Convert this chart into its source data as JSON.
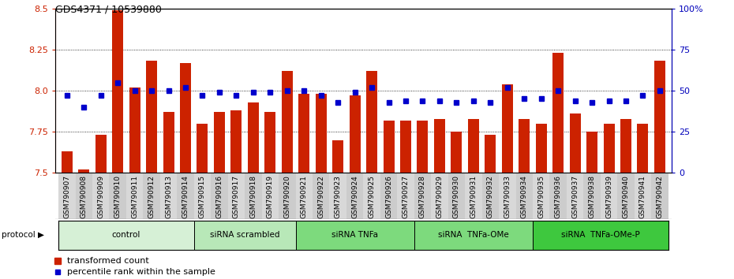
{
  "title": "GDS4371 / 10539880",
  "samples": [
    "GSM790907",
    "GSM790908",
    "GSM790909",
    "GSM790910",
    "GSM790911",
    "GSM790912",
    "GSM790913",
    "GSM790914",
    "GSM790915",
    "GSM790916",
    "GSM790917",
    "GSM790918",
    "GSM790919",
    "GSM790920",
    "GSM790921",
    "GSM790922",
    "GSM790923",
    "GSM790924",
    "GSM790925",
    "GSM790926",
    "GSM790927",
    "GSM790928",
    "GSM790929",
    "GSM790930",
    "GSM790931",
    "GSM790932",
    "GSM790933",
    "GSM790934",
    "GSM790935",
    "GSM790936",
    "GSM790937",
    "GSM790938",
    "GSM790939",
    "GSM790940",
    "GSM790941",
    "GSM790942"
  ],
  "bar_values": [
    7.63,
    7.52,
    7.73,
    8.49,
    8.02,
    8.18,
    7.87,
    8.17,
    7.8,
    7.87,
    7.88,
    7.93,
    7.87,
    8.12,
    7.98,
    7.98,
    7.7,
    7.97,
    8.12,
    7.82,
    7.82,
    7.82,
    7.83,
    7.75,
    7.83,
    7.73,
    8.04,
    7.83,
    7.8,
    8.23,
    7.86,
    7.75,
    7.8,
    7.83,
    7.8,
    8.18
  ],
  "percentile_values": [
    47,
    40,
    47,
    55,
    50,
    50,
    50,
    52,
    47,
    49,
    47,
    49,
    49,
    50,
    50,
    47,
    43,
    49,
    52,
    43,
    44,
    44,
    44,
    43,
    44,
    43,
    52,
    45,
    45,
    50,
    44,
    43,
    44,
    44,
    47,
    50
  ],
  "groups": [
    {
      "label": "control",
      "start": 0,
      "end": 8,
      "color": "#d6f0d6"
    },
    {
      "label": "siRNA scrambled",
      "start": 8,
      "end": 14,
      "color": "#b8e8b8"
    },
    {
      "label": "siRNA TNFa",
      "start": 14,
      "end": 21,
      "color": "#7dda7d"
    },
    {
      "label": "siRNA  TNFa-OMe",
      "start": 21,
      "end": 28,
      "color": "#7dda7d"
    },
    {
      "label": "siRNA  TNFa-OMe-P",
      "start": 28,
      "end": 36,
      "color": "#3ec83e"
    }
  ],
  "bar_color": "#cc2200",
  "percentile_color": "#0000cc",
  "ylim_left": [
    7.5,
    8.5
  ],
  "ylim_right": [
    0,
    100
  ],
  "yticks_left": [
    7.5,
    7.75,
    8.0,
    8.25,
    8.5
  ],
  "yticks_right": [
    0,
    25,
    50,
    75,
    100
  ],
  "ytick_labels_right": [
    "0",
    "25",
    "50",
    "75",
    "100%"
  ],
  "grid_values": [
    7.75,
    8.0,
    8.25
  ],
  "bar_width": 0.65,
  "xlabel_fontsize": 6.5,
  "ylabel_fontsize": 8,
  "title_fontsize": 9
}
